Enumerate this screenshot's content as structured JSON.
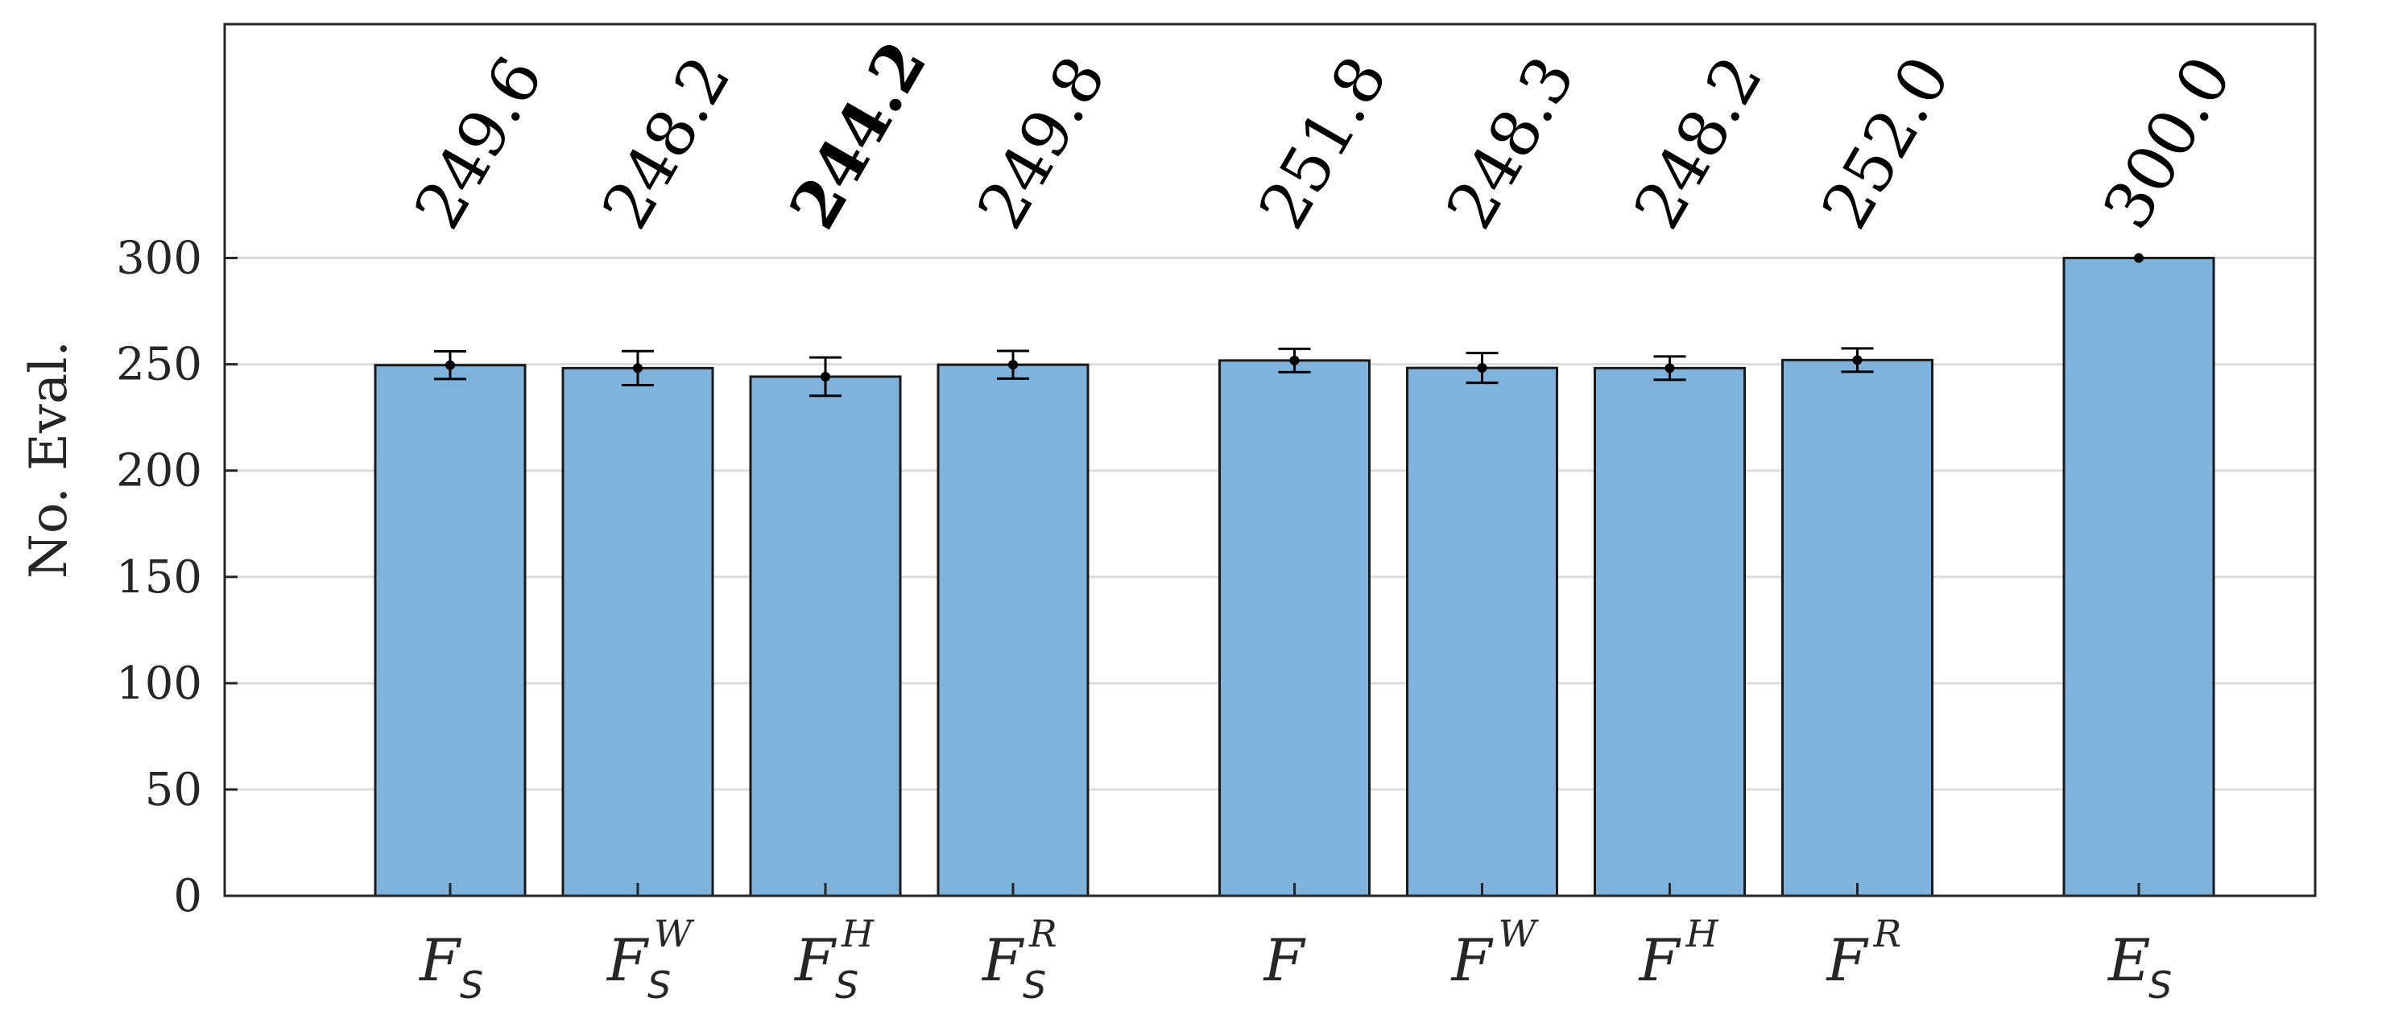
{
  "chart_data": {
    "type": "bar",
    "ylabel": "No. Eval.",
    "xlabel": "",
    "ylim": [
      0,
      410
    ],
    "yticks": [
      0,
      50,
      100,
      150,
      200,
      250,
      300
    ],
    "grid": true,
    "bar_color": "#7fb3dc",
    "bar_edge_color": "#1a1a1a",
    "bars": [
      {
        "label": {
          "base": "F",
          "sup": "",
          "sub": "S"
        },
        "value": 249.6,
        "value_label": "249.6",
        "err": 6.5,
        "bold": false
      },
      {
        "label": {
          "base": "F",
          "sup": "W",
          "sub": "S"
        },
        "value": 248.2,
        "value_label": "248.2",
        "err": 8.0,
        "bold": false
      },
      {
        "label": {
          "base": "F",
          "sup": "H",
          "sub": "S"
        },
        "value": 244.2,
        "value_label": "244.2",
        "err": 9.0,
        "bold": true
      },
      {
        "label": {
          "base": "F",
          "sup": "R",
          "sub": "S"
        },
        "value": 249.8,
        "value_label": "249.8",
        "err": 6.5,
        "bold": false
      },
      {
        "label": {
          "base": "F",
          "sup": "",
          "sub": ""
        },
        "value": 251.8,
        "value_label": "251.8",
        "err": 5.5,
        "bold": false
      },
      {
        "label": {
          "base": "F",
          "sup": "W",
          "sub": ""
        },
        "value": 248.3,
        "value_label": "248.3",
        "err": 7.0,
        "bold": false
      },
      {
        "label": {
          "base": "F",
          "sup": "H",
          "sub": ""
        },
        "value": 248.2,
        "value_label": "248.2",
        "err": 5.5,
        "bold": false
      },
      {
        "label": {
          "base": "F",
          "sup": "R",
          "sub": ""
        },
        "value": 252.0,
        "value_label": "252.0",
        "err": 5.5,
        "bold": false
      },
      {
        "label": {
          "base": "E",
          "sup": "",
          "sub": "S"
        },
        "value": 300.0,
        "value_label": "300.0",
        "err": 0,
        "bold": false
      }
    ]
  }
}
